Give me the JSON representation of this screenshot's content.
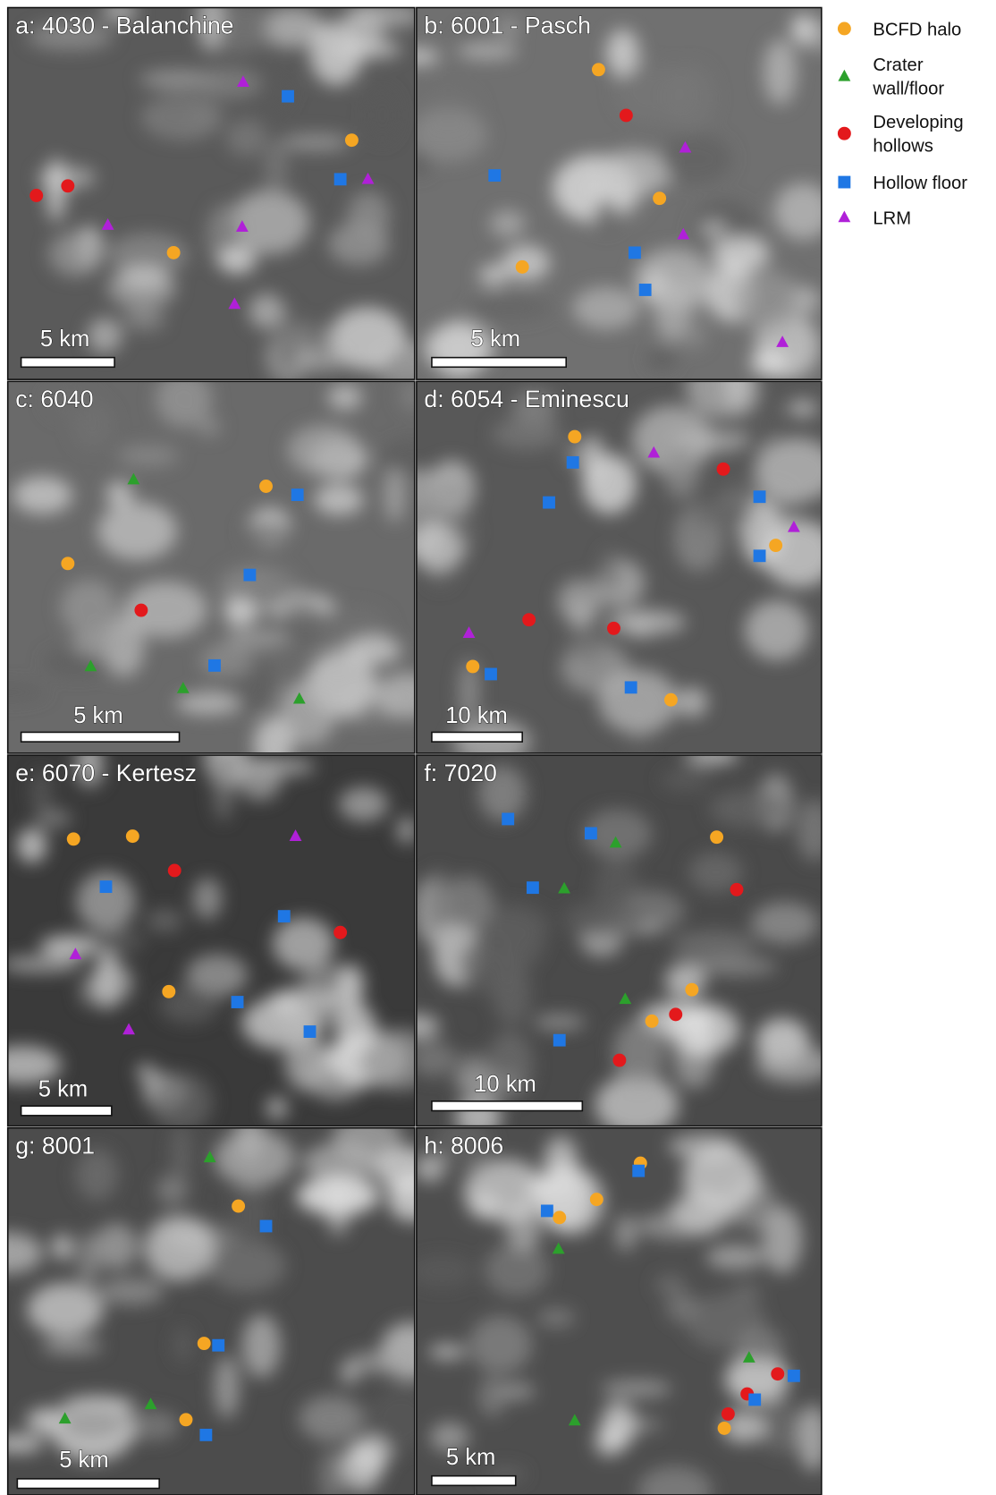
{
  "legend": [
    "BCFD halo",
    "Crater wall/floor",
    "Developing hollows",
    "Hollow floor",
    "LRM"
  ],
  "panels": [
    {
      "label": "a: 4030 - Balanchine",
      "scale": "5 km"
    },
    {
      "label": "b: 6001 - Pasch",
      "scale": "5 km"
    },
    {
      "label": "c: 6040",
      "scale": "5 km"
    },
    {
      "label": "d: 6054 - Eminescu",
      "scale": "10 km"
    },
    {
      "label": "e: 6070 - Kertesz",
      "scale": "5 km"
    },
    {
      "label": "f: 7020",
      "scale": "10 km"
    },
    {
      "label": "g: 8001",
      "scale": "5 km"
    },
    {
      "label": "h: 8006",
      "scale": "5 km"
    }
  ]
}
